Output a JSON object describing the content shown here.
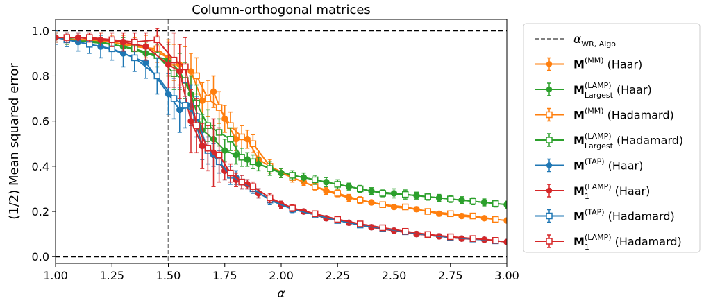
{
  "chart_data": {
    "type": "line",
    "title": "Column-orthogonal matrices",
    "xlabel": "α",
    "ylabel": "(1/2) Mean squared error",
    "xlim": [
      1.0,
      3.0
    ],
    "ylim": [
      -0.03,
      1.05
    ],
    "x_ticks": [
      "1.00",
      "1.25",
      "1.50",
      "1.75",
      "2.00",
      "2.25",
      "2.50",
      "2.75",
      "3.00"
    ],
    "y_ticks": [
      "0.0",
      "0.2",
      "0.4",
      "0.6",
      "0.8",
      "1.0"
    ],
    "grid": false,
    "legend_position": "outside-right",
    "reference_lines": [
      {
        "orientation": "horizontal",
        "y": 1.0,
        "style": "dashed",
        "color": "#000000"
      },
      {
        "orientation": "horizontal",
        "y": 0.0,
        "style": "dashed",
        "color": "#000000"
      },
      {
        "orientation": "vertical",
        "x": 1.5,
        "style": "dashed",
        "color": "#808080"
      }
    ],
    "legend": [
      {
        "kind": "line",
        "color": "#808080",
        "dashed": true,
        "math": "α",
        "sub": "WR, Algo",
        "sup": "",
        "text": ""
      },
      {
        "kind": "series",
        "series": 0,
        "bold": "M",
        "sup": "(MM)",
        "sub": "",
        "text": " (Haar)"
      },
      {
        "kind": "series",
        "series": 1,
        "bold": "M",
        "sup": "(LAMP)",
        "sub": "Largest",
        "text": " (Haar)"
      },
      {
        "kind": "series",
        "series": 2,
        "bold": "M",
        "sup": "(MM)",
        "sub": "",
        "text": " (Hadamard)"
      },
      {
        "kind": "series",
        "series": 3,
        "bold": "M",
        "sup": "(LAMP)",
        "sub": "Largest",
        "text": " (Hadamard)"
      },
      {
        "kind": "series",
        "series": 4,
        "bold": "M",
        "sup": "(TAP)",
        "sub": "",
        "text": " (Haar)"
      },
      {
        "kind": "series",
        "series": 5,
        "bold": "M",
        "sup": "(LAMP)",
        "sub": "1",
        "text": " (Haar)"
      },
      {
        "kind": "series",
        "series": 6,
        "bold": "M",
        "sup": "(TAP)",
        "sub": "",
        "text": " (Hadamard)"
      },
      {
        "kind": "series",
        "series": 7,
        "bold": "M",
        "sup": "(LAMP)",
        "sub": "1",
        "text": " (Hadamard)"
      }
    ],
    "series": [
      {
        "color": "#ff7f0e",
        "marker": "circle-filled",
        "x": [
          1.0,
          1.1,
          1.2,
          1.3,
          1.4,
          1.5,
          1.55,
          1.6,
          1.65,
          1.7,
          1.75,
          1.8,
          1.85,
          1.9,
          2.0,
          2.1,
          2.2,
          2.3,
          2.4,
          2.5,
          2.6,
          2.7,
          2.8,
          2.9,
          3.0
        ],
        "y": [
          0.97,
          0.96,
          0.96,
          0.94,
          0.93,
          0.88,
          0.85,
          0.82,
          0.69,
          0.73,
          0.61,
          0.52,
          0.52,
          0.43,
          0.37,
          0.33,
          0.29,
          0.26,
          0.24,
          0.22,
          0.21,
          0.19,
          0.18,
          0.17,
          0.16
        ],
        "err": [
          0.02,
          0.02,
          0.03,
          0.04,
          0.05,
          0.08,
          0.09,
          0.08,
          0.08,
          0.07,
          0.06,
          0.05,
          0.04,
          0.03,
          0.02,
          0.015,
          0.015,
          0.015,
          0.01,
          0.01,
          0.01,
          0.01,
          0.01,
          0.01,
          0.01
        ]
      },
      {
        "color": "#2ca02c",
        "marker": "circle-filled",
        "x": [
          1.0,
          1.1,
          1.2,
          1.3,
          1.4,
          1.5,
          1.55,
          1.6,
          1.65,
          1.7,
          1.75,
          1.8,
          1.85,
          1.9,
          2.0,
          2.1,
          2.2,
          2.3,
          2.4,
          2.5,
          2.6,
          2.7,
          2.8,
          2.9,
          3.0
        ],
        "y": [
          0.97,
          0.96,
          0.95,
          0.93,
          0.9,
          0.87,
          0.82,
          0.72,
          0.56,
          0.52,
          0.47,
          0.45,
          0.43,
          0.41,
          0.37,
          0.35,
          0.33,
          0.31,
          0.29,
          0.28,
          0.27,
          0.26,
          0.25,
          0.24,
          0.23
        ],
        "err": [
          0.02,
          0.02,
          0.03,
          0.04,
          0.05,
          0.07,
          0.08,
          0.08,
          0.07,
          0.06,
          0.05,
          0.04,
          0.03,
          0.03,
          0.02,
          0.02,
          0.02,
          0.015,
          0.015,
          0.02,
          0.015,
          0.015,
          0.015,
          0.015,
          0.015
        ]
      },
      {
        "color": "#ff7f0e",
        "marker": "square-open",
        "x": [
          1.05,
          1.15,
          1.25,
          1.35,
          1.45,
          1.525,
          1.575,
          1.625,
          1.675,
          1.725,
          1.775,
          1.825,
          1.875,
          1.95,
          2.05,
          2.15,
          2.25,
          2.35,
          2.45,
          2.55,
          2.65,
          2.75,
          2.85,
          2.95
        ],
        "y": [
          0.96,
          0.96,
          0.95,
          0.93,
          0.92,
          0.86,
          0.84,
          0.8,
          0.7,
          0.66,
          0.58,
          0.53,
          0.5,
          0.4,
          0.35,
          0.31,
          0.28,
          0.25,
          0.23,
          0.22,
          0.2,
          0.19,
          0.18,
          0.165
        ],
        "err": [
          0.02,
          0.02,
          0.03,
          0.04,
          0.06,
          0.08,
          0.09,
          0.08,
          0.08,
          0.07,
          0.06,
          0.05,
          0.04,
          0.03,
          0.02,
          0.015,
          0.015,
          0.015,
          0.01,
          0.01,
          0.01,
          0.01,
          0.01,
          0.01
        ]
      },
      {
        "color": "#2ca02c",
        "marker": "square-open",
        "x": [
          1.05,
          1.15,
          1.25,
          1.35,
          1.45,
          1.525,
          1.575,
          1.625,
          1.675,
          1.725,
          1.775,
          1.825,
          1.875,
          1.95,
          2.05,
          2.15,
          2.25,
          2.35,
          2.45,
          2.55,
          2.65,
          2.75,
          2.85,
          2.95
        ],
        "y": [
          0.96,
          0.95,
          0.94,
          0.92,
          0.89,
          0.81,
          0.78,
          0.68,
          0.58,
          0.55,
          0.52,
          0.44,
          0.42,
          0.39,
          0.36,
          0.34,
          0.32,
          0.3,
          0.28,
          0.275,
          0.265,
          0.255,
          0.245,
          0.235
        ],
        "err": [
          0.02,
          0.02,
          0.03,
          0.04,
          0.05,
          0.07,
          0.08,
          0.08,
          0.07,
          0.06,
          0.05,
          0.04,
          0.03,
          0.03,
          0.02,
          0.02,
          0.02,
          0.015,
          0.015,
          0.02,
          0.015,
          0.015,
          0.015,
          0.015
        ]
      },
      {
        "color": "#1f77b4",
        "marker": "circle-filled",
        "x": [
          1.0,
          1.1,
          1.2,
          1.3,
          1.4,
          1.5,
          1.55,
          1.6,
          1.65,
          1.7,
          1.75,
          1.8,
          1.85,
          1.9,
          2.0,
          2.1,
          2.2,
          2.3,
          2.4,
          2.5,
          2.6,
          2.7,
          2.8,
          2.9,
          3.0
        ],
        "y": [
          0.97,
          0.95,
          0.93,
          0.9,
          0.86,
          0.72,
          0.65,
          0.67,
          0.49,
          0.45,
          0.38,
          0.35,
          0.32,
          0.28,
          0.23,
          0.2,
          0.17,
          0.15,
          0.13,
          0.115,
          0.1,
          0.09,
          0.08,
          0.075,
          0.065
        ],
        "err": [
          0.03,
          0.04,
          0.05,
          0.06,
          0.07,
          0.09,
          0.1,
          0.09,
          0.06,
          0.05,
          0.04,
          0.03,
          0.02,
          0.02,
          0.015,
          0.01,
          0.01,
          0.01,
          0.01,
          0.01,
          0.01,
          0.01,
          0.01,
          0.01,
          0.01
        ]
      },
      {
        "color": "#d62728",
        "marker": "circle-filled",
        "x": [
          1.0,
          1.1,
          1.2,
          1.3,
          1.4,
          1.5,
          1.55,
          1.6,
          1.65,
          1.7,
          1.75,
          1.8,
          1.85,
          1.9,
          2.0,
          2.1,
          2.2,
          2.3,
          2.4,
          2.5,
          2.6,
          2.7,
          2.8,
          2.9,
          3.0
        ],
        "y": [
          0.97,
          0.97,
          0.96,
          0.95,
          0.93,
          0.85,
          0.82,
          0.6,
          0.49,
          0.46,
          0.38,
          0.34,
          0.32,
          0.28,
          0.23,
          0.2,
          0.17,
          0.15,
          0.13,
          0.115,
          0.1,
          0.09,
          0.08,
          0.075,
          0.065
        ],
        "err": [
          0.02,
          0.02,
          0.03,
          0.04,
          0.06,
          0.1,
          0.12,
          0.14,
          0.1,
          0.15,
          0.04,
          0.03,
          0.02,
          0.02,
          0.015,
          0.01,
          0.01,
          0.01,
          0.01,
          0.01,
          0.01,
          0.01,
          0.01,
          0.01,
          0.01
        ]
      },
      {
        "color": "#1f77b4",
        "marker": "square-open",
        "x": [
          1.05,
          1.15,
          1.25,
          1.35,
          1.45,
          1.525,
          1.575,
          1.625,
          1.675,
          1.725,
          1.775,
          1.825,
          1.875,
          1.95,
          2.05,
          2.15,
          2.25,
          2.35,
          2.45,
          2.55,
          2.65,
          2.75,
          2.85,
          2.95
        ],
        "y": [
          0.96,
          0.94,
          0.92,
          0.88,
          0.8,
          0.7,
          0.67,
          0.62,
          0.47,
          0.42,
          0.36,
          0.33,
          0.3,
          0.25,
          0.21,
          0.185,
          0.16,
          0.14,
          0.125,
          0.11,
          0.095,
          0.085,
          0.078,
          0.07
        ],
        "err": [
          0.03,
          0.04,
          0.05,
          0.06,
          0.08,
          0.09,
          0.1,
          0.09,
          0.06,
          0.05,
          0.04,
          0.03,
          0.02,
          0.02,
          0.015,
          0.01,
          0.01,
          0.01,
          0.01,
          0.01,
          0.01,
          0.01,
          0.01,
          0.01
        ]
      },
      {
        "color": "#d62728",
        "marker": "square-open",
        "x": [
          1.05,
          1.15,
          1.25,
          1.35,
          1.45,
          1.525,
          1.575,
          1.625,
          1.675,
          1.725,
          1.775,
          1.825,
          1.875,
          1.95,
          2.05,
          2.15,
          2.25,
          2.35,
          2.45,
          2.55,
          2.65,
          2.75,
          2.85,
          2.95
        ],
        "y": [
          0.97,
          0.97,
          0.96,
          0.95,
          0.96,
          0.87,
          0.84,
          0.58,
          0.48,
          0.45,
          0.37,
          0.33,
          0.31,
          0.26,
          0.215,
          0.19,
          0.165,
          0.145,
          0.128,
          0.112,
          0.098,
          0.088,
          0.08,
          0.072
        ],
        "err": [
          0.02,
          0.02,
          0.03,
          0.04,
          0.05,
          0.12,
          0.13,
          0.12,
          0.1,
          0.12,
          0.04,
          0.03,
          0.02,
          0.02,
          0.015,
          0.01,
          0.01,
          0.01,
          0.01,
          0.01,
          0.01,
          0.01,
          0.01,
          0.01
        ]
      }
    ]
  }
}
